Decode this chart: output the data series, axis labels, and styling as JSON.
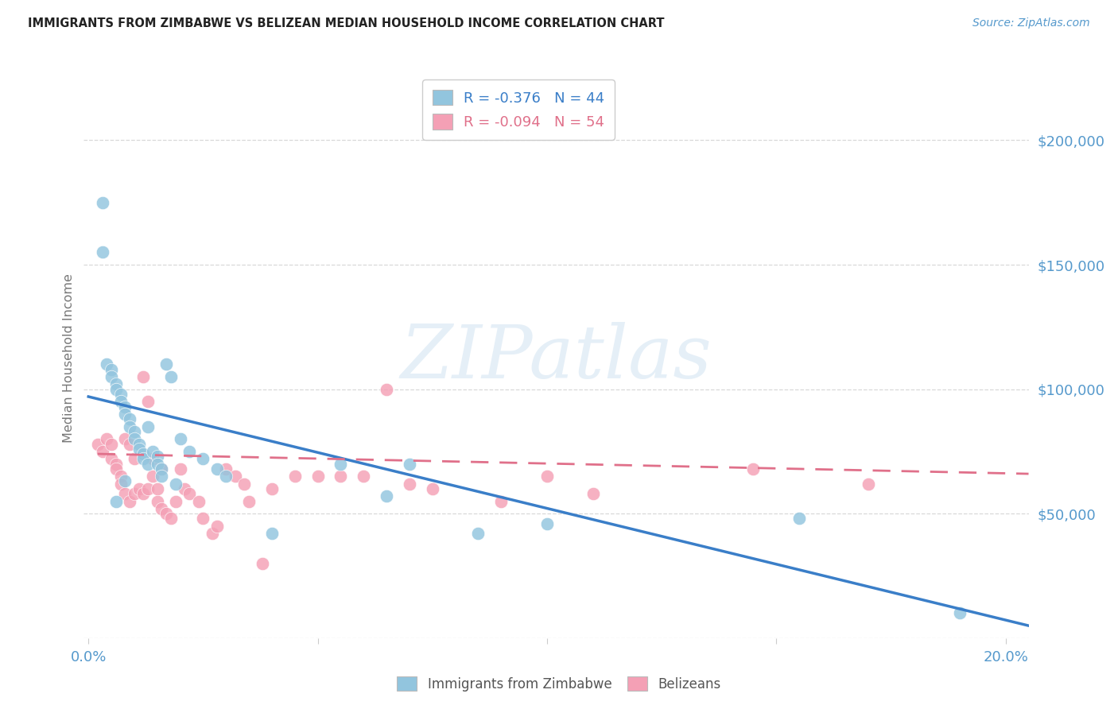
{
  "title": "IMMIGRANTS FROM ZIMBABWE VS BELIZEAN MEDIAN HOUSEHOLD INCOME CORRELATION CHART",
  "source_text": "Source: ZipAtlas.com",
  "ylabel": "Median Household Income",
  "xlim": [
    -0.001,
    0.205
  ],
  "ylim": [
    0,
    225000
  ],
  "yticks": [
    0,
    50000,
    100000,
    150000,
    200000
  ],
  "ytick_labels": [
    "",
    "$50,000",
    "$100,000",
    "$150,000",
    "$200,000"
  ],
  "xtick_positions": [
    0.0,
    0.05,
    0.1,
    0.15,
    0.2
  ],
  "xtick_labels": [
    "0.0%",
    "",
    "",
    "",
    "20.0%"
  ],
  "series1_label": "Immigrants from Zimbabwe",
  "series2_label": "Belizeans",
  "series1_color": "#92c5de",
  "series2_color": "#f4a0b5",
  "trendline1_color": "#3a7ec8",
  "trendline2_color": "#e0708a",
  "background_color": "#ffffff",
  "title_color": "#222222",
  "axis_color": "#5599cc",
  "grid_color": "#d8d8d8",
  "legend_label1": "R = -0.376   N = 44",
  "legend_label2": "R = -0.094   N = 54",
  "watermark_text": "ZIPatlas",
  "zimbabwe_x": [
    0.003,
    0.003,
    0.004,
    0.005,
    0.005,
    0.006,
    0.006,
    0.007,
    0.007,
    0.008,
    0.008,
    0.009,
    0.009,
    0.01,
    0.01,
    0.011,
    0.011,
    0.012,
    0.012,
    0.013,
    0.013,
    0.014,
    0.015,
    0.015,
    0.016,
    0.016,
    0.017,
    0.018,
    0.02,
    0.022,
    0.025,
    0.028,
    0.03,
    0.04,
    0.055,
    0.065,
    0.07,
    0.085,
    0.1,
    0.155,
    0.19,
    0.006,
    0.008,
    0.019
  ],
  "zimbabwe_y": [
    175000,
    155000,
    110000,
    108000,
    105000,
    102000,
    100000,
    98000,
    95000,
    93000,
    90000,
    88000,
    85000,
    83000,
    80000,
    78000,
    76000,
    74000,
    72000,
    70000,
    85000,
    75000,
    73000,
    70000,
    68000,
    65000,
    110000,
    105000,
    80000,
    75000,
    72000,
    68000,
    65000,
    42000,
    70000,
    57000,
    70000,
    42000,
    46000,
    48000,
    10000,
    55000,
    63000,
    62000
  ],
  "belizean_x": [
    0.002,
    0.003,
    0.004,
    0.005,
    0.005,
    0.006,
    0.006,
    0.007,
    0.007,
    0.008,
    0.008,
    0.009,
    0.009,
    0.01,
    0.01,
    0.011,
    0.012,
    0.012,
    0.013,
    0.013,
    0.014,
    0.014,
    0.015,
    0.015,
    0.016,
    0.016,
    0.017,
    0.018,
    0.019,
    0.02,
    0.021,
    0.022,
    0.024,
    0.025,
    0.027,
    0.028,
    0.03,
    0.032,
    0.034,
    0.035,
    0.038,
    0.04,
    0.045,
    0.05,
    0.055,
    0.06,
    0.065,
    0.07,
    0.075,
    0.09,
    0.1,
    0.11,
    0.145,
    0.17
  ],
  "belizean_y": [
    78000,
    75000,
    80000,
    78000,
    72000,
    70000,
    68000,
    65000,
    62000,
    80000,
    58000,
    55000,
    78000,
    58000,
    72000,
    60000,
    105000,
    58000,
    95000,
    60000,
    72000,
    65000,
    60000,
    55000,
    52000,
    68000,
    50000,
    48000,
    55000,
    68000,
    60000,
    58000,
    55000,
    48000,
    42000,
    45000,
    68000,
    65000,
    62000,
    55000,
    30000,
    60000,
    65000,
    65000,
    65000,
    65000,
    100000,
    62000,
    60000,
    55000,
    65000,
    58000,
    68000,
    62000
  ]
}
